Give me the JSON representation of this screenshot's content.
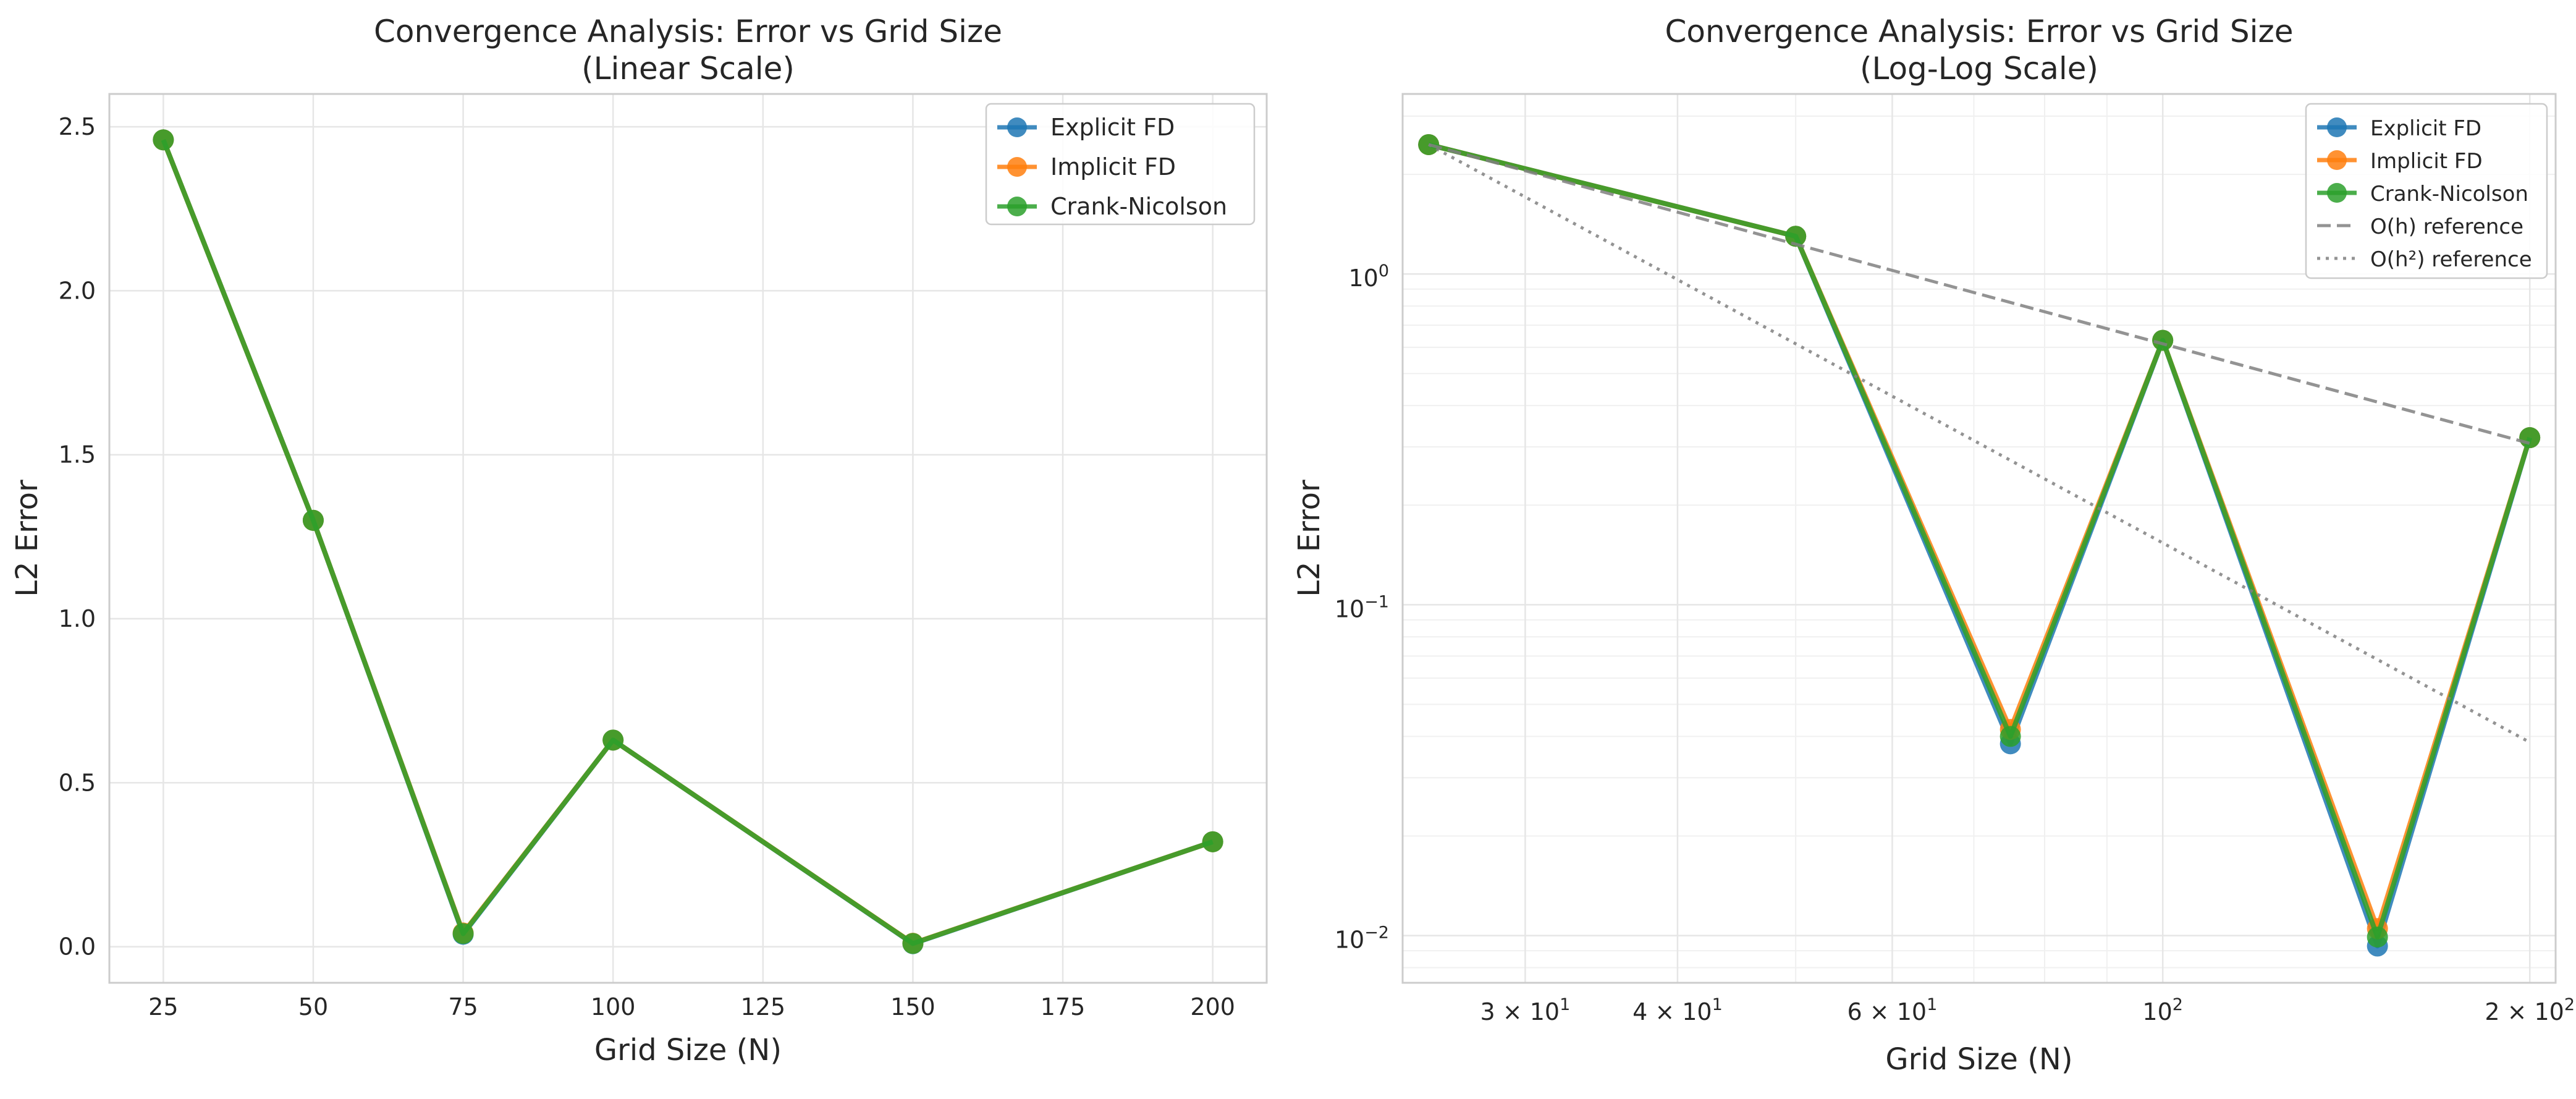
{
  "colors": {
    "explicit": "#1f77b4",
    "implicit": "#ff7f0e",
    "crank": "#2ca02c",
    "reference": "#808080",
    "grid": "#e6e6e6",
    "spine": "#cccccc"
  },
  "chart_data": [
    {
      "type": "line",
      "title": "Convergence Analysis: Error vs Grid Size\n(Linear Scale)",
      "title_lines": [
        "Convergence Analysis: Error vs Grid Size",
        "(Linear Scale)"
      ],
      "xlabel": "Grid Size (N)",
      "ylabel": "L2 Error",
      "xscale": "linear",
      "yscale": "linear",
      "xlim": [
        16,
        209
      ],
      "ylim": [
        -0.11,
        2.6
      ],
      "xticks": [
        25,
        50,
        75,
        100,
        125,
        150,
        175,
        200
      ],
      "xtick_labels": [
        "25",
        "50",
        "75",
        "100",
        "125",
        "150",
        "175",
        "200"
      ],
      "yticks": [
        0.0,
        0.5,
        1.0,
        1.5,
        2.0,
        2.5
      ],
      "ytick_labels": [
        "0.0",
        "0.5",
        "1.0",
        "1.5",
        "2.0",
        "2.5"
      ],
      "grid": true,
      "legend_position": "top-right",
      "x": [
        25,
        50,
        75,
        100,
        150,
        200
      ],
      "series": [
        {
          "name": "Explicit FD",
          "color_key": "explicit",
          "style": "solid",
          "marker": true,
          "values": [
            2.46,
            1.3,
            0.038,
            0.63,
            0.0093,
            0.32
          ]
        },
        {
          "name": "Implicit FD",
          "color_key": "implicit",
          "style": "solid",
          "marker": true,
          "values": [
            2.46,
            1.3,
            0.042,
            0.63,
            0.0105,
            0.32
          ]
        },
        {
          "name": "Crank-Nicolson",
          "color_key": "crank",
          "style": "solid",
          "marker": true,
          "values": [
            2.46,
            1.3,
            0.04,
            0.63,
            0.0099,
            0.32
          ]
        }
      ]
    },
    {
      "type": "line",
      "title": "Convergence Analysis: Error vs Grid Size\n(Log-Log Scale)",
      "title_lines": [
        "Convergence Analysis: Error vs Grid Size",
        "(Log-Log Scale)"
      ],
      "xlabel": "Grid Size (N)",
      "ylabel": "L2 Error",
      "xscale": "log",
      "yscale": "log",
      "xlim": [
        23.8,
        210
      ],
      "ylim": [
        0.0072,
        3.5
      ],
      "xticks": [
        30,
        40,
        60,
        100,
        200
      ],
      "xtick_labels": [
        {
          "base": "3 × 10",
          "exp": "1"
        },
        {
          "base": "4 × 10",
          "exp": "1"
        },
        {
          "base": "6 × 10",
          "exp": "1"
        },
        {
          "base": "10",
          "exp": "2"
        },
        {
          "base": "2 × 10",
          "exp": "2"
        }
      ],
      "yticks": [
        0.01,
        0.1,
        1
      ],
      "ytick_labels": [
        {
          "base": "10",
          "exp": "−2"
        },
        {
          "base": "10",
          "exp": "−1"
        },
        {
          "base": "10",
          "exp": "0"
        }
      ],
      "grid": true,
      "grid_minor": true,
      "legend_position": "top-right",
      "x": [
        25,
        50,
        75,
        100,
        150,
        200
      ],
      "series": [
        {
          "name": "Explicit FD",
          "color_key": "explicit",
          "style": "solid",
          "marker": true,
          "values": [
            2.46,
            1.3,
            0.038,
            0.63,
            0.0093,
            0.32
          ]
        },
        {
          "name": "Implicit FD",
          "color_key": "implicit",
          "style": "solid",
          "marker": true,
          "values": [
            2.46,
            1.3,
            0.042,
            0.63,
            0.0105,
            0.32
          ]
        },
        {
          "name": "Crank-Nicolson",
          "color_key": "crank",
          "style": "solid",
          "marker": true,
          "values": [
            2.46,
            1.3,
            0.04,
            0.63,
            0.0099,
            0.32
          ]
        },
        {
          "name": "O(h) reference",
          "color_key": "reference",
          "style": "dashed",
          "marker": false,
          "values": [
            2.46,
            1.23,
            0.82,
            0.615,
            0.41,
            0.3075
          ]
        },
        {
          "name": "O(h²) reference",
          "color_key": "reference",
          "style": "dotted",
          "marker": false,
          "values": [
            2.46,
            0.615,
            0.2733,
            0.1538,
            0.0683,
            0.0384
          ]
        }
      ]
    }
  ]
}
